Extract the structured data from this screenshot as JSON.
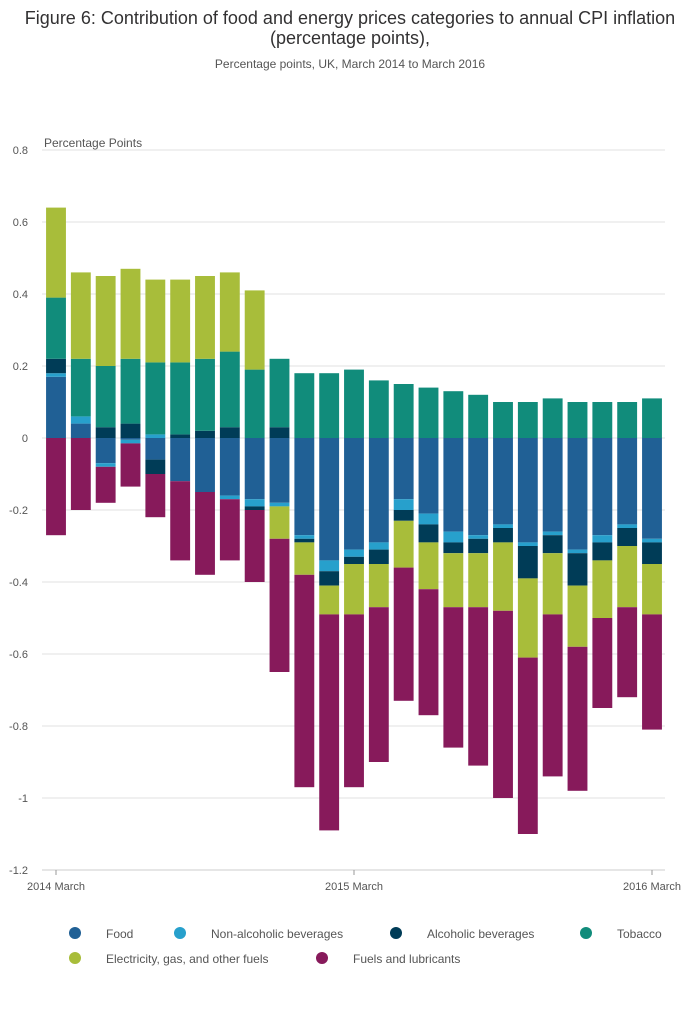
{
  "chart_data": {
    "type": "bar",
    "stacked": true,
    "title": "Figure 6: Contribution of food and energy prices categories to annual CPI inflation (percentage points),",
    "subtitle": "Percentage points, UK, March 2014 to March 2016",
    "ylabel": "Percentage Points",
    "xlabel": "",
    "ylim": [
      -1.2,
      0.8
    ],
    "yticks": [
      0.8,
      0.6,
      0.4,
      0.2,
      0,
      -0.2,
      -0.4,
      -0.6,
      -0.8,
      -1,
      -1.2
    ],
    "ytick_labels": [
      "0.8",
      "0.6",
      "0.4",
      "0.2",
      "0",
      "-0.2",
      "-0.4",
      "-0.6",
      "-0.8",
      "-1",
      "-1.2"
    ],
    "grid": true,
    "legend_position": "bottom",
    "categories": [
      "2014 Mar",
      "2014 Apr",
      "2014 May",
      "2014 Jun",
      "2014 Jul",
      "2014 Aug",
      "2014 Sep",
      "2014 Oct",
      "2014 Nov",
      "2014 Dec",
      "2015 Jan",
      "2015 Feb",
      "2015 Mar",
      "2015 Apr",
      "2015 May",
      "2015 Jun",
      "2015 Jul",
      "2015 Aug",
      "2015 Sep",
      "2015 Oct",
      "2015 Nov",
      "2015 Dec",
      "2016 Jan",
      "2016 Feb",
      "2016 Mar"
    ],
    "x_tick_labels": [
      {
        "index": 0,
        "label": "2014 March"
      },
      {
        "index": 12,
        "label": "2015 March"
      },
      {
        "index": 24,
        "label": "2016 March"
      }
    ],
    "series": [
      {
        "name": "Food",
        "color": "#206095",
        "values": [
          0.17,
          0.04,
          -0.07,
          -0.005,
          -0.06,
          -0.12,
          -0.15,
          -0.16,
          -0.17,
          -0.18,
          -0.27,
          -0.34,
          -0.31,
          -0.29,
          -0.17,
          -0.21,
          -0.26,
          -0.27,
          -0.24,
          -0.29,
          -0.26,
          -0.31,
          -0.27,
          -0.24,
          -0.28
        ]
      },
      {
        "name": "Non-alcoholic beverages",
        "color": "#27a0cc",
        "values": [
          0.01,
          0.02,
          -0.01,
          -0.01,
          0.01,
          0,
          0,
          -0.01,
          -0.02,
          -0.01,
          -0.01,
          -0.03,
          -0.02,
          -0.02,
          -0.03,
          -0.03,
          -0.03,
          -0.01,
          -0.01,
          -0.01,
          -0.01,
          -0.01,
          -0.02,
          -0.01,
          -0.01
        ]
      },
      {
        "name": "Alcoholic beverages",
        "color": "#003c57",
        "values": [
          0.04,
          0,
          0.03,
          0.04,
          -0.04,
          0.01,
          0.02,
          0.03,
          -0.01,
          0.03,
          -0.01,
          -0.04,
          -0.02,
          -0.04,
          -0.03,
          -0.05,
          -0.03,
          -0.04,
          -0.04,
          -0.09,
          -0.05,
          -0.09,
          -0.05,
          -0.05,
          -0.06
        ]
      },
      {
        "name": "Tobacco",
        "color": "#118c7b",
        "values": [
          0.17,
          0.16,
          0.17,
          0.18,
          0.2,
          0.2,
          0.2,
          0.21,
          0.19,
          0.19,
          0.18,
          0.18,
          0.19,
          0.16,
          0.15,
          0.14,
          0.13,
          0.12,
          0.1,
          0.1,
          0.11,
          0.1,
          0.1,
          0.1,
          0.11
        ]
      },
      {
        "name": "Electricity, gas, and other fuels",
        "color": "#a8bd3a",
        "values": [
          0.25,
          0.24,
          0.25,
          0.25,
          0.23,
          0.23,
          0.23,
          0.22,
          0.22,
          -0.09,
          -0.09,
          -0.08,
          -0.14,
          -0.12,
          -0.13,
          -0.13,
          -0.15,
          -0.15,
          -0.19,
          -0.22,
          -0.17,
          -0.17,
          -0.16,
          -0.17,
          -0.14
        ]
      },
      {
        "name": "Fuels and lubricants",
        "color": "#871a5b",
        "values": [
          -0.27,
          -0.2,
          -0.1,
          -0.12,
          -0.12,
          -0.22,
          -0.23,
          -0.17,
          -0.2,
          -0.37,
          -0.59,
          -0.6,
          -0.48,
          -0.43,
          -0.37,
          -0.35,
          -0.39,
          -0.44,
          -0.52,
          -0.49,
          -0.45,
          -0.4,
          -0.25,
          -0.25,
          -0.32
        ]
      }
    ]
  }
}
